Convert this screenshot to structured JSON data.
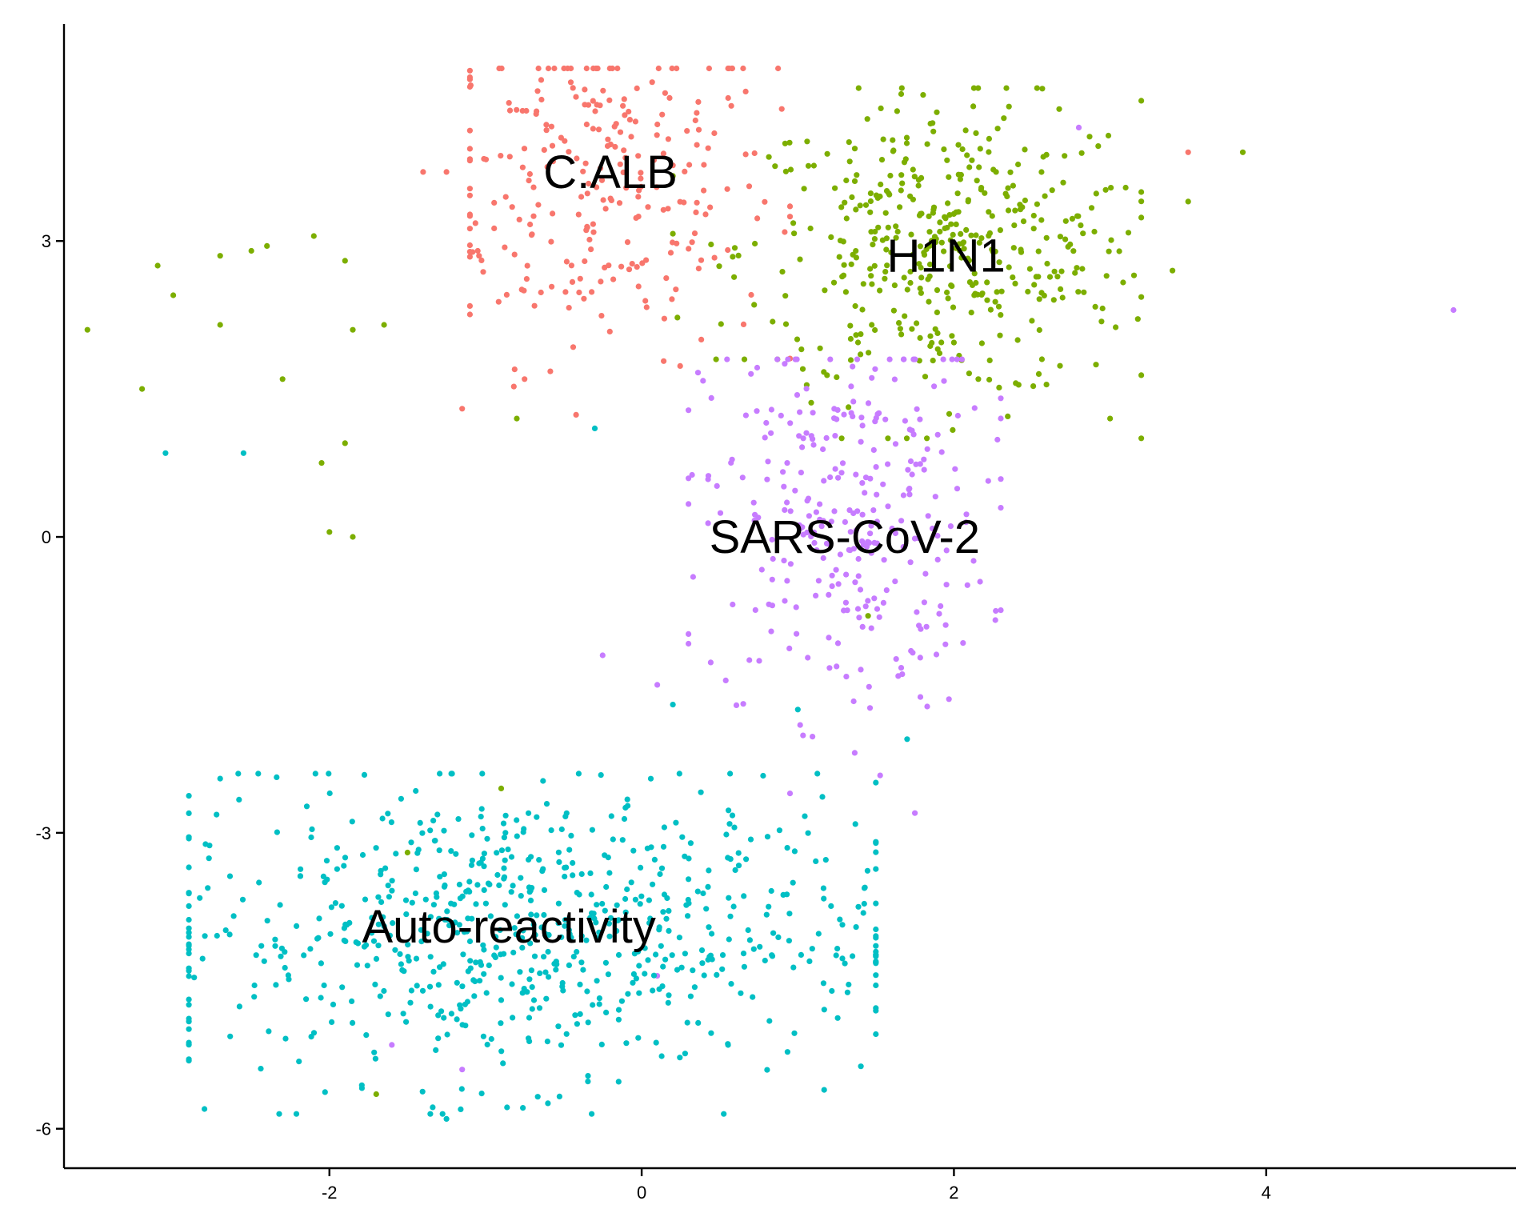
{
  "chart_data": {
    "type": "scatter",
    "title": "",
    "xlabel": "",
    "ylabel": "",
    "xlim": [
      -3.7,
      5.6
    ],
    "ylim": [
      -6.4,
      5.2
    ],
    "grid": false,
    "legend": "none",
    "x_ticks": [
      -2,
      0,
      2,
      4
    ],
    "y_ticks": [
      -6,
      -3,
      0,
      3
    ],
    "x_tick_labels": [
      "-2",
      "0",
      "2",
      "4"
    ],
    "y_tick_labels": [
      "-6",
      "-3",
      "0",
      "3"
    ],
    "series": [
      {
        "name": "C.ALB",
        "color": "#F8766D",
        "center": [
          -0.25,
          3.6
        ],
        "spread": [
          0.55,
          0.9
        ],
        "n": 260,
        "points": [
          [
            -1.4,
            3.7
          ],
          [
            -1.25,
            3.7
          ],
          [
            -1.15,
            1.3
          ],
          [
            -1.05,
            2.9
          ],
          [
            -0.75,
            1.6
          ],
          [
            3.5,
            3.9
          ],
          [
            -0.85,
            4.4
          ],
          [
            0.15,
            4.5
          ]
        ]
      },
      {
        "name": "H1N1",
        "color": "#7CAE00",
        "center": [
          1.95,
          2.9
        ],
        "spread": [
          0.65,
          0.75
        ],
        "n": 430,
        "points": [
          [
            -3.55,
            2.1
          ],
          [
            -3.2,
            1.5
          ],
          [
            -3.1,
            2.75
          ],
          [
            -3.0,
            2.45
          ],
          [
            -2.7,
            2.85
          ],
          [
            -2.7,
            2.15
          ],
          [
            -2.5,
            2.9
          ],
          [
            -2.4,
            2.95
          ],
          [
            -2.3,
            1.6
          ],
          [
            -2.1,
            3.05
          ],
          [
            -2.05,
            0.75
          ],
          [
            -2.0,
            0.05
          ],
          [
            -1.9,
            2.8
          ],
          [
            -1.85,
            0.0
          ],
          [
            -1.85,
            2.1
          ],
          [
            -1.65,
            2.15
          ],
          [
            -1.9,
            0.95
          ],
          [
            -0.8,
            1.2
          ],
          [
            3.85,
            3.9
          ],
          [
            3.5,
            3.4
          ],
          [
            3.4,
            2.7
          ],
          [
            3.0,
            1.2
          ],
          [
            1.45,
            -0.8
          ],
          [
            -1.5,
            -3.2
          ],
          [
            -0.9,
            -2.55
          ],
          [
            -1.7,
            -5.65
          ]
        ]
      },
      {
        "name": "SARS-CoV-2",
        "color": "#C77CFF",
        "center": [
          1.3,
          0.2
        ],
        "spread": [
          0.45,
          1.0
        ],
        "n": 300,
        "points": [
          [
            5.2,
            2.3
          ],
          [
            0.95,
            -2.6
          ],
          [
            1.75,
            -2.8
          ],
          [
            2.8,
            4.15
          ],
          [
            -0.25,
            -1.2
          ],
          [
            0.1,
            -1.5
          ],
          [
            0.1,
            -4.45
          ],
          [
            -1.15,
            -5.4
          ],
          [
            -1.6,
            -5.15
          ]
        ]
      },
      {
        "name": "Auto-reactivity",
        "color": "#00BFC4",
        "center": [
          -0.75,
          -4.0
        ],
        "spread": [
          1.15,
          0.75
        ],
        "n": 700,
        "points": [
          [
            -3.05,
            0.85
          ],
          [
            -2.55,
            0.85
          ],
          [
            -0.3,
            1.1
          ],
          [
            0.2,
            -1.7
          ],
          [
            1.0,
            -1.75
          ],
          [
            1.7,
            -2.05
          ],
          [
            -2.7,
            -2.45
          ],
          [
            -2.9,
            -3.35
          ],
          [
            -2.8,
            -5.8
          ],
          [
            -1.25,
            -5.9
          ],
          [
            1.35,
            -4.25
          ]
        ]
      }
    ],
    "annotations": [
      {
        "text": "C.ALB",
        "x": -0.2,
        "y": 3.7
      },
      {
        "text": "H1N1",
        "x": 1.95,
        "y": 2.85
      },
      {
        "text": "SARS-CoV-2",
        "x": 1.3,
        "y": 0.0
      },
      {
        "text": "Auto-reactivity",
        "x": -0.85,
        "y": -3.95
      }
    ]
  }
}
